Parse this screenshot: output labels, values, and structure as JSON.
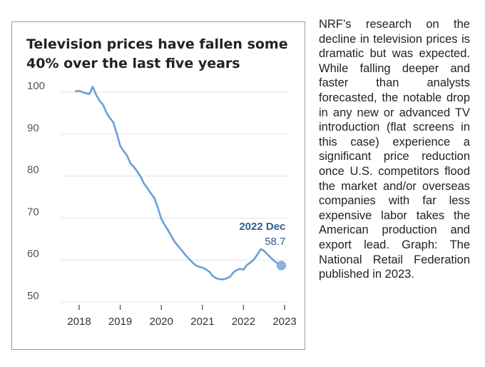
{
  "chart_data": {
    "type": "line",
    "title": "Television prices have fallen some 40% over the last five years",
    "xlabel": "",
    "ylabel": "",
    "x_ticks": [
      "2018",
      "2019",
      "2020",
      "2021",
      "2022",
      "2023"
    ],
    "y_ticks": [
      "100",
      "90",
      "80",
      "70",
      "60",
      "50"
    ],
    "ylim": [
      50,
      100
    ],
    "xlim": [
      2018,
      2023
    ],
    "grid": "horizontal",
    "line_color": "#6b9fd4",
    "annotation": {
      "label": "2022 Dec",
      "value": "58.7",
      "color": "#2f5f8f"
    },
    "series": [
      {
        "x": [
          2017.92,
          2018.0,
          2018.08,
          2018.17,
          2018.25,
          2018.33,
          2018.42,
          2018.5,
          2018.58,
          2018.67,
          2018.75,
          2018.83,
          2018.92,
          2019.0,
          2019.08,
          2019.17,
          2019.25,
          2019.33,
          2019.42,
          2019.5,
          2019.58,
          2019.67,
          2019.75,
          2019.83,
          2019.92,
          2020.0,
          2020.08,
          2020.17,
          2020.25,
          2020.33,
          2020.42,
          2020.5,
          2020.58,
          2020.67,
          2020.75,
          2020.83,
          2020.92,
          2021.0,
          2021.08,
          2021.17,
          2021.25,
          2021.33,
          2021.42,
          2021.5,
          2021.58,
          2021.67,
          2021.75,
          2021.83,
          2021.92,
          2022.0,
          2022.08,
          2022.17,
          2022.25,
          2022.33,
          2022.42,
          2022.5,
          2022.58,
          2022.67,
          2022.75,
          2022.83,
          2022.92
        ],
        "values": [
          100.2,
          100.3,
          100.0,
          99.7,
          99.5,
          101.3,
          99.2,
          97.9,
          97.0,
          95.0,
          93.8,
          92.8,
          90.0,
          87.2,
          86.0,
          84.8,
          83.0,
          82.2,
          81.0,
          79.8,
          78.2,
          77.0,
          75.8,
          74.8,
          72.3,
          69.8,
          68.4,
          67.0,
          65.6,
          64.3,
          63.2,
          62.3,
          61.3,
          60.3,
          59.5,
          58.8,
          58.4,
          58.2,
          57.8,
          57.2,
          56.2,
          55.7,
          55.4,
          55.4,
          55.6,
          56.0,
          57.0,
          57.6,
          57.9,
          57.7,
          58.8,
          59.4,
          60.1,
          61.2,
          62.6,
          62.2,
          61.4,
          60.5,
          59.8,
          59.2,
          58.7
        ]
      }
    ]
  },
  "side_note": "NRF’s research on the decline in television prices is dramatic but was expected. While falling deeper and faster than analysts forecasted, the notable drop in any new or advanced TV introduction (flat screens in this case) experience a significant price reduction once U.S. competitors flood the market and/or overseas companies with far less expensive labor takes the American production and export lead. Graph: The National Retail Federation published in 2023."
}
